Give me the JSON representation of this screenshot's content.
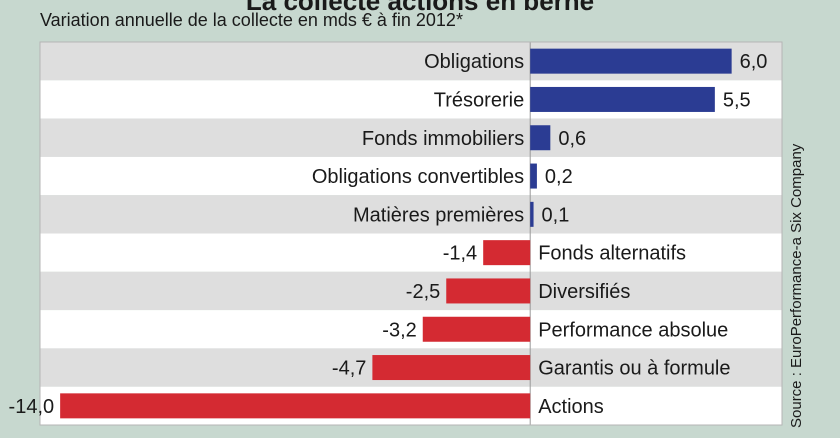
{
  "title": "La collecte actions en berne",
  "subtitle": "Variation annuelle de la collecte en mds € à fin 2012*",
  "source": "Source : EuroPerformance-a Six Company",
  "chart_data": {
    "type": "bar",
    "orientation": "horizontal",
    "categories": [
      "Obligations",
      "Trésorerie",
      "Fonds immobiliers",
      "Obligations convertibles",
      "Matières premières",
      "Fonds alternatifs",
      "Diversifiés",
      "Performance absolue",
      "Garantis ou à formule",
      "Actions"
    ],
    "values": [
      6.0,
      5.5,
      0.6,
      0.2,
      0.1,
      -1.4,
      -2.5,
      -3.2,
      -4.7,
      -14.0
    ],
    "value_labels": [
      "6,0",
      "5,5",
      "0,6",
      "0,2",
      "0,1",
      "-1,4",
      "-2,5",
      "-3,2",
      "-4,7",
      "-14,0"
    ],
    "xlim": [
      -14.6,
      7.5
    ],
    "colors": {
      "positive": "#2b3c93",
      "negative": "#d42a32",
      "row_alt": "#dedede",
      "row": "#ffffff",
      "grid": "#9a9a9a"
    }
  }
}
